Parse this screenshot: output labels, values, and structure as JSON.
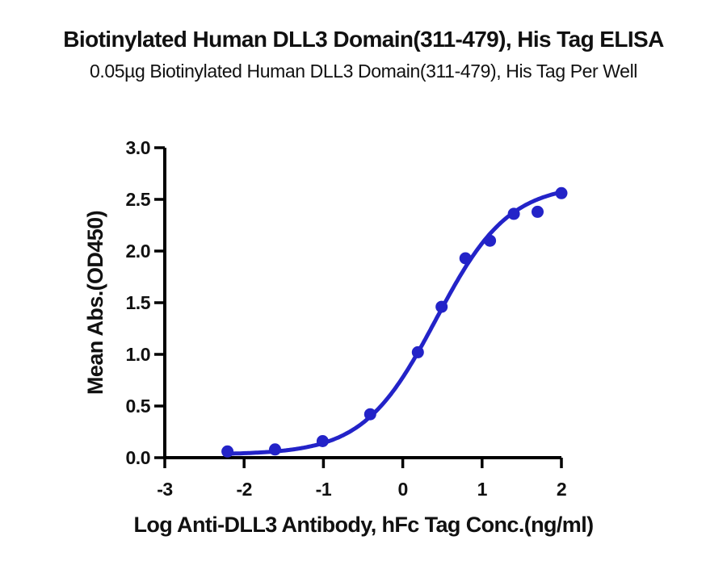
{
  "chart_data": {
    "type": "scatter",
    "title": "Biotinylated Human DLL3 Domain(311-479), His Tag ELISA",
    "subtitle": "0.05µg Biotinylated Human DLL3 Domain(311-479), His Tag Per Well",
    "xlabel": "Log Anti-DLL3 Antibody, hFc Tag Conc.(ng/ml)",
    "ylabel": "Mean Abs.(OD450)",
    "xlim": [
      -3,
      2
    ],
    "ylim": [
      0,
      3
    ],
    "grid": false,
    "legend": "none",
    "x_ticks": [
      -3,
      -2,
      -1,
      0,
      1,
      2
    ],
    "x_tick_labels": [
      "-3",
      "-2",
      "-1",
      "0",
      "1",
      "2"
    ],
    "y_ticks": [
      0,
      0.5,
      1,
      1.5,
      2,
      2.5,
      3
    ],
    "y_tick_labels": [
      "0.0",
      "0.5",
      "1.0",
      "1.5",
      "2.0",
      "2.5",
      "3.0"
    ],
    "series": [
      {
        "name": "Anti-DLL3 Antibody, hFc Tag",
        "marker": "circle",
        "color": "#2323c8",
        "points": [
          {
            "x": -2.21,
            "y": 0.06
          },
          {
            "x": -1.61,
            "y": 0.08
          },
          {
            "x": -1.01,
            "y": 0.16
          },
          {
            "x": -0.41,
            "y": 0.42
          },
          {
            "x": 0.19,
            "y": 1.02
          },
          {
            "x": 0.49,
            "y": 1.46
          },
          {
            "x": 0.79,
            "y": 1.93
          },
          {
            "x": 1.1,
            "y": 2.1
          },
          {
            "x": 1.4,
            "y": 2.36
          },
          {
            "x": 1.7,
            "y": 2.38
          },
          {
            "x": 2.0,
            "y": 2.56
          }
        ]
      }
    ],
    "fit_curve": {
      "model": "4PL",
      "bottom": 0.03,
      "top": 2.65,
      "logEC50": 0.42,
      "hill": 0.95,
      "x_start": -2.21,
      "x_end": 2.0,
      "color": "#2323c8"
    },
    "colors": {
      "accent": "#2323c8",
      "axis": "#000000",
      "background": "#ffffff"
    }
  }
}
